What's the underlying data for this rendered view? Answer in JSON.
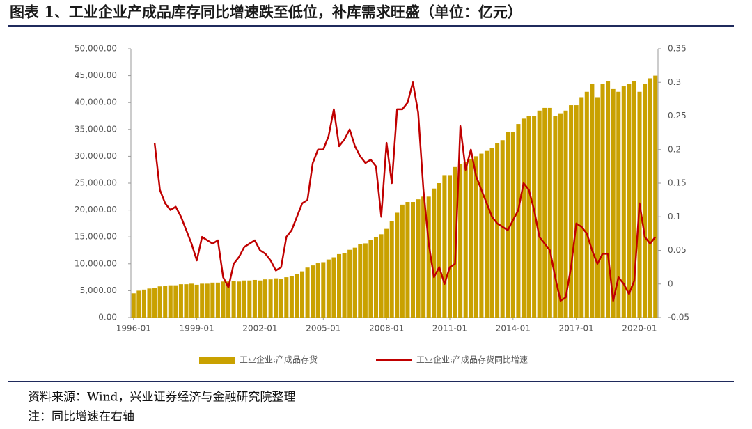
{
  "header": {
    "title": "图表 1、工业企业产成品库存同比增速跌至低位，补库需求旺盛（单位：亿元）"
  },
  "chart_data": {
    "type": "bar-line",
    "categories": [
      "1996-01",
      "1996-04",
      "1996-07",
      "1996-10",
      "1997-01",
      "1997-04",
      "1997-07",
      "1997-10",
      "1998-01",
      "1998-04",
      "1998-07",
      "1998-10",
      "1999-01",
      "1999-04",
      "1999-07",
      "1999-10",
      "2000-01",
      "2000-04",
      "2000-07",
      "2000-10",
      "2001-01",
      "2001-04",
      "2001-07",
      "2001-10",
      "2002-01",
      "2002-04",
      "2002-07",
      "2002-10",
      "2003-01",
      "2003-04",
      "2003-07",
      "2003-10",
      "2004-01",
      "2004-04",
      "2004-07",
      "2004-10",
      "2005-01",
      "2005-04",
      "2005-07",
      "2005-10",
      "2006-01",
      "2006-04",
      "2006-07",
      "2006-10",
      "2007-01",
      "2007-04",
      "2007-07",
      "2007-10",
      "2008-01",
      "2008-04",
      "2008-07",
      "2008-10",
      "2009-01",
      "2009-04",
      "2009-07",
      "2009-10",
      "2010-01",
      "2010-04",
      "2010-07",
      "2010-10",
      "2011-01",
      "2011-04",
      "2011-07",
      "2011-10",
      "2012-01",
      "2012-04",
      "2012-07",
      "2012-10",
      "2013-01",
      "2013-04",
      "2013-07",
      "2013-10",
      "2014-01",
      "2014-04",
      "2014-07",
      "2014-10",
      "2015-01",
      "2015-04",
      "2015-07",
      "2015-10",
      "2016-01",
      "2016-04",
      "2016-07",
      "2016-10",
      "2017-01",
      "2017-04",
      "2017-07",
      "2017-10",
      "2018-01",
      "2018-04",
      "2018-07",
      "2018-10",
      "2019-01",
      "2019-04",
      "2019-07",
      "2019-10",
      "2020-01",
      "2020-04",
      "2020-07",
      "2020-10"
    ],
    "series": [
      {
        "name": "工业企业:产成品存货",
        "type": "bar",
        "color": "#c9a100",
        "values": [
          4500,
          5000,
          5200,
          5400,
          5500,
          5800,
          5900,
          6000,
          6000,
          6200,
          6200,
          6300,
          6100,
          6300,
          6300,
          6500,
          6500,
          6700,
          6700,
          6800,
          6700,
          6900,
          6900,
          7000,
          6900,
          7100,
          7100,
          7300,
          7200,
          7500,
          7700,
          8100,
          8600,
          9300,
          9700,
          10100,
          10300,
          10800,
          11200,
          11800,
          12000,
          12600,
          13000,
          13600,
          13800,
          14500,
          15000,
          15500,
          16500,
          18000,
          19500,
          21000,
          21500,
          21500,
          22000,
          22500,
          22500,
          24000,
          25000,
          26500,
          26500,
          28000,
          28500,
          29000,
          29500,
          30000,
          30500,
          31000,
          31500,
          32500,
          33000,
          34500,
          34500,
          36000,
          37000,
          37500,
          37500,
          38500,
          39000,
          39000,
          37500,
          38000,
          38500,
          39500,
          39500,
          41000,
          42000,
          43500,
          41000,
          43500,
          44000,
          42500,
          42000,
          43000,
          43500,
          44000,
          42000,
          43500,
          44500,
          45000
        ]
      },
      {
        "name": "工业企业:产成品存货同比增速",
        "type": "line",
        "axis": "y2",
        "color": "#c00000",
        "values": [
          null,
          null,
          null,
          null,
          0.21,
          0.14,
          0.12,
          0.11,
          0.115,
          0.1,
          0.08,
          0.06,
          0.035,
          0.07,
          0.065,
          0.06,
          0.065,
          0.01,
          -0.005,
          0.03,
          0.04,
          0.055,
          0.06,
          0.065,
          0.05,
          0.045,
          0.035,
          0.02,
          0.025,
          0.07,
          0.08,
          0.1,
          0.12,
          0.125,
          0.18,
          0.2,
          0.2,
          0.22,
          0.26,
          0.205,
          0.215,
          0.23,
          0.205,
          0.19,
          0.18,
          0.185,
          0.175,
          0.1,
          0.21,
          0.15,
          0.26,
          0.26,
          0.27,
          0.3,
          0.255,
          0.14,
          0.06,
          0.01,
          0.025,
          0.0,
          0.025,
          0.03,
          0.235,
          0.17,
          0.2,
          0.16,
          0.14,
          0.12,
          0.1,
          0.09,
          0.085,
          0.08,
          0.095,
          0.11,
          0.15,
          0.14,
          0.11,
          0.07,
          0.06,
          0.05,
          0.01,
          -0.025,
          -0.02,
          0.025,
          0.09,
          0.085,
          0.075,
          0.05,
          0.03,
          0.045,
          0.045,
          -0.025,
          0.01,
          0.0,
          -0.015,
          0.005,
          0.12,
          0.07,
          0.06,
          0.07
        ]
      }
    ],
    "ylim": [
      0,
      50000
    ],
    "yticks": [
      {
        "value": 0,
        "label": "0.00"
      },
      {
        "value": 5000,
        "label": "5,000.00"
      },
      {
        "value": 10000,
        "label": "10,000.00"
      },
      {
        "value": 15000,
        "label": "15,000.00"
      },
      {
        "value": 20000,
        "label": "20,000.00"
      },
      {
        "value": 25000,
        "label": "25,000.00"
      },
      {
        "value": 30000,
        "label": "30,000.00"
      },
      {
        "value": 35000,
        "label": "35,000.00"
      },
      {
        "value": 40000,
        "label": "40,000.00"
      },
      {
        "value": 45000,
        "label": "45,000.00"
      },
      {
        "value": 50000,
        "label": "50,000.00"
      }
    ],
    "y2lim": [
      -0.05,
      0.35
    ],
    "y2ticks": [
      -0.05,
      0,
      0.05,
      0.1,
      0.15,
      0.2,
      0.25,
      0.3,
      0.35
    ],
    "grid": false,
    "legend": "bottom"
  },
  "footer": {
    "source": "资料来源：Wind，兴业证券经济与金融研究院整理",
    "note": "注：同比增速在右轴"
  }
}
